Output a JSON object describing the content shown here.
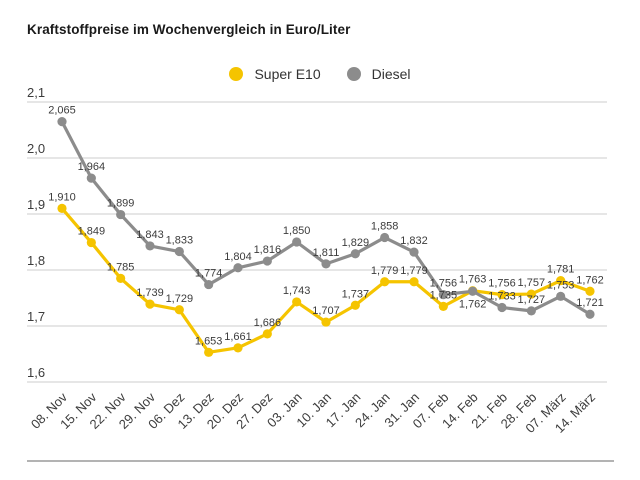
{
  "title": "Kraftstoffpreise im Wochenvergleich in Euro/Liter",
  "legend": [
    {
      "label": "Super E10",
      "color": "#F5C400"
    },
    {
      "label": "Diesel",
      "color": "#8C8C8C"
    }
  ],
  "chart_data": {
    "type": "line",
    "title": "Kraftstoffpreise im Wochenvergleich in Euro/Liter",
    "categories": [
      "08. Nov",
      "15. Nov",
      "22. Nov",
      "29. Nov",
      "06. Dez",
      "13. Dez",
      "20. Dez",
      "27. Dez",
      "03. Jan",
      "10. Jan",
      "17. Jan",
      "24. Jan",
      "31. Jan",
      "07. Feb",
      "14. Feb",
      "21. Feb",
      "28. Feb",
      "07. März",
      "14. März"
    ],
    "series": [
      {
        "name": "Super E10",
        "color": "#F5C400",
        "values": [
          1.91,
          1.849,
          1.785,
          1.739,
          1.729,
          1.653,
          1.661,
          1.686,
          1.743,
          1.707,
          1.737,
          1.779,
          1.779,
          1.735,
          1.763,
          1.756,
          1.757,
          1.781,
          1.762
        ]
      },
      {
        "name": "Diesel",
        "color": "#8C8C8C",
        "values": [
          2.065,
          1.964,
          1.899,
          1.843,
          1.833,
          1.774,
          1.804,
          1.816,
          1.85,
          1.811,
          1.829,
          1.858,
          1.832,
          1.756,
          1.762,
          1.733,
          1.727,
          1.753,
          1.721
        ]
      }
    ],
    "ylim": [
      1.6,
      2.1
    ],
    "ytick_values": [
      2.1,
      2.0,
      1.9,
      1.8,
      1.7,
      1.6
    ],
    "ytick_labels": [
      "2,1",
      "2,0",
      "1,9",
      "1,8",
      "1,7",
      "1,6"
    ],
    "grid": true,
    "data_labels": true,
    "decimal_separator": ",",
    "legend_position": "top-center",
    "x_tick_rotation": 45
  },
  "colors": {
    "gridline": "#CCCCCC",
    "axis_text": "#3C3C3C",
    "data_label_text": "#3C3C3C",
    "footer_divider": "#B3B3B3"
  }
}
